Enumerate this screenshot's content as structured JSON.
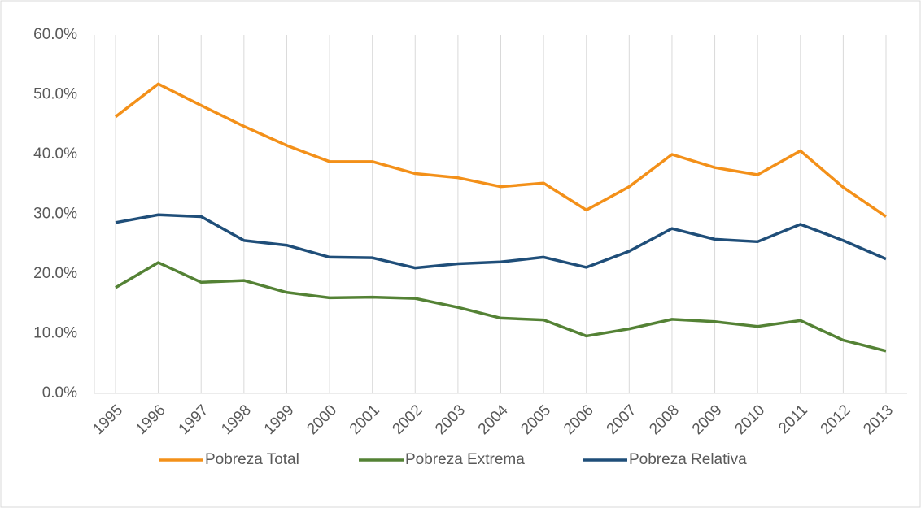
{
  "chart_data": {
    "type": "line",
    "categories": [
      "1995",
      "1996",
      "1997",
      "1998",
      "1999",
      "2000",
      "2001",
      "2002",
      "2003",
      "2004",
      "2005",
      "2006",
      "2007",
      "2008",
      "2009",
      "2010",
      "2011",
      "2012",
      "2013"
    ],
    "series": [
      {
        "name": "Pobreza Total",
        "color": "#f39019",
        "values": [
          46.3,
          51.8,
          48.2,
          44.7,
          41.5,
          38.8,
          38.8,
          36.8,
          36.1,
          34.6,
          35.2,
          30.7,
          34.6,
          40.0,
          37.8,
          36.6,
          40.6,
          34.5,
          29.6
        ]
      },
      {
        "name": "Pobreza Extrema",
        "color": "#548235",
        "values": [
          17.7,
          21.9,
          18.6,
          18.9,
          16.9,
          16.0,
          16.1,
          15.9,
          14.4,
          12.6,
          12.3,
          9.6,
          10.8,
          12.4,
          12.0,
          11.2,
          12.2,
          8.9,
          7.1
        ]
      },
      {
        "name": "Pobreza Relativa",
        "color": "#1f4e79",
        "values": [
          28.6,
          29.9,
          29.6,
          25.6,
          24.8,
          22.8,
          22.7,
          21.0,
          21.7,
          22.0,
          22.8,
          21.1,
          23.8,
          27.6,
          25.8,
          25.4,
          28.3,
          25.6,
          22.5
        ]
      }
    ],
    "ylim": [
      0,
      60
    ],
    "yticks": [
      {
        "value": 0,
        "label": "0.0%"
      },
      {
        "value": 10,
        "label": "10.0%"
      },
      {
        "value": 20,
        "label": "20.0%"
      },
      {
        "value": 30,
        "label": "30.0%"
      },
      {
        "value": 40,
        "label": "40.0%"
      },
      {
        "value": 50,
        "label": "50.0%"
      },
      {
        "value": 60,
        "label": "60.0%"
      }
    ],
    "grid": "x",
    "legend": "bottom"
  }
}
